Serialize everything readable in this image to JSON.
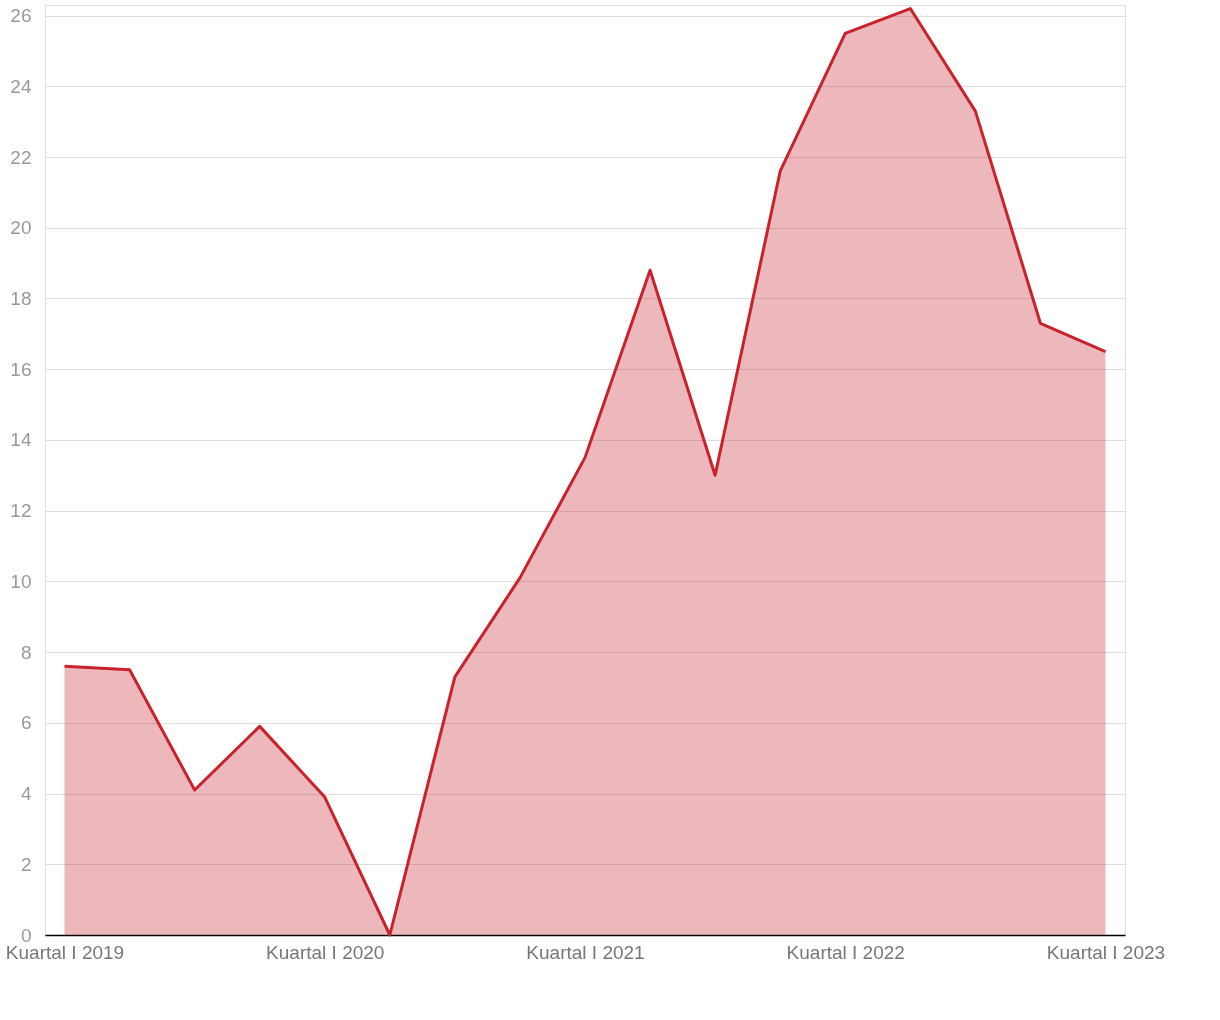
{
  "chart_data": {
    "type": "area",
    "categories": [
      "Kuartal I 2019",
      null,
      null,
      null,
      "Kuartal I 2020",
      null,
      null,
      null,
      "Kuartal I 2021",
      null,
      null,
      null,
      "Kuartal I 2022",
      null,
      null,
      null,
      "Kuartal I 2023"
    ],
    "series": [
      {
        "color": "#c8232c",
        "values": [
          7.6,
          7.5,
          4.1,
          5.9,
          3.9,
          0,
          7.3,
          10.1,
          13.5,
          18.8,
          13.0,
          21.6,
          25.5,
          26.2,
          23.3,
          17.3,
          16.5
        ]
      }
    ],
    "ylim": [
      0,
      26.3
    ],
    "yticks": [
      0,
      2,
      4,
      6,
      8,
      10,
      12,
      14,
      16,
      18,
      20,
      22,
      24,
      26
    ],
    "grid": "y"
  }
}
